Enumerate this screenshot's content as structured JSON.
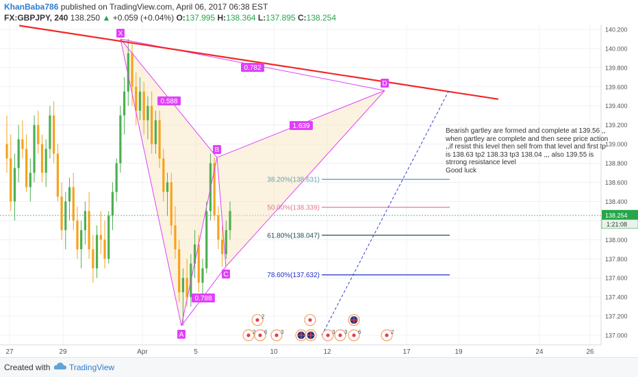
{
  "header": {
    "author": "KhanBaba786",
    "published_text": "published on TradingView.com, April 06, 2017 06:38 EST",
    "symbol": "FX:GBPJPY, 240",
    "last": "138.250",
    "change_arrow": "▲",
    "change": "+0.059 (+0.04%)",
    "open_label": "O:",
    "open": "137.995",
    "high_label": "H:",
    "high": "138.364",
    "low_label": "L:",
    "low": "137.895",
    "close_label": "C:",
    "close": "138.254"
  },
  "footer": {
    "created_with": "Created with",
    "brand": "TradingView",
    "icon": "tradingview-cloud-icon"
  },
  "note": "Bearish gartley are formed and complete at 139.56 ,, when gartley are complete and then seee price action ,,if resist this level then sell from that level and first tp is 138.63 tp2 138.33 tp3 138.04 ,,, also 139.55 is strrong resistance level\nGood luck",
  "colors": {
    "up": "#4caf50",
    "down": "#f7a21b",
    "pattern": "#e040fb",
    "trendline": "#f22626",
    "grid": "#eef0f4",
    "price_tag": "#26a64a"
  },
  "chart_data": {
    "type": "candlestick",
    "symbol": "GBPJPY",
    "interval": "240",
    "y_range": [
      136.9,
      140.25
    ],
    "y_ticks": [
      "140.200",
      "140.000",
      "139.800",
      "139.600",
      "139.400",
      "139.200",
      "139.000",
      "138.800",
      "138.600",
      "138.400",
      "138.200",
      "138.000",
      "137.800",
      "137.600",
      "137.400",
      "137.200",
      "137.000"
    ],
    "x_ticks": [
      "27",
      "29",
      "Apr",
      "5",
      "10",
      "12",
      "17",
      "19",
      "24",
      "26"
    ],
    "current_price_label": "138.254",
    "countdown_label": "1:21:08",
    "pattern_points": [
      {
        "label": "X",
        "price": 140.1
      },
      {
        "label": "A",
        "price": 137.1
      },
      {
        "label": "B",
        "price": 138.86
      },
      {
        "label": "C",
        "price": 137.72
      },
      {
        "label": "D",
        "price": 139.56
      }
    ],
    "ratios": [
      "0.782",
      "0.588",
      "1.639",
      "0.788"
    ],
    "fib_levels": [
      {
        "label": "38.20%(138.631)",
        "price": 138.631,
        "color": "#6aa0b0"
      },
      {
        "label": "50.00%(138.339)",
        "price": 138.339,
        "color": "#e07a8c"
      },
      {
        "label": "61.80%(138.047)",
        "price": 138.047,
        "color": "#1c4b5a"
      },
      {
        "label": "78.60%(137.632)",
        "price": 137.632,
        "color": "#1f2fc6"
      }
    ],
    "trendline": {
      "start_price": 140.24,
      "end_price": 139.47
    },
    "projection_line": {
      "start_price": 137.0,
      "end_price": 139.55
    },
    "candles": [
      [
        139.0,
        139.3,
        138.7,
        138.85
      ],
      [
        138.85,
        139.1,
        138.3,
        138.4
      ],
      [
        138.4,
        138.9,
        138.2,
        138.75
      ],
      [
        138.75,
        139.2,
        138.6,
        139.05
      ],
      [
        139.05,
        139.25,
        138.85,
        138.95
      ],
      [
        138.95,
        139.1,
        138.5,
        138.55
      ],
      [
        138.55,
        138.85,
        138.4,
        138.7
      ],
      [
        138.7,
        139.3,
        138.6,
        139.2
      ],
      [
        139.2,
        139.35,
        138.9,
        139.0
      ],
      [
        139.0,
        139.1,
        138.6,
        138.7
      ],
      [
        138.7,
        139.05,
        138.55,
        138.95
      ],
      [
        138.95,
        139.4,
        138.85,
        139.3
      ],
      [
        139.3,
        139.45,
        138.8,
        138.9
      ],
      [
        138.9,
        139.0,
        138.4,
        138.45
      ],
      [
        138.45,
        138.6,
        138.0,
        138.1
      ],
      [
        138.1,
        138.5,
        137.9,
        138.4
      ],
      [
        138.4,
        138.65,
        138.2,
        138.55
      ],
      [
        138.55,
        138.7,
        138.1,
        138.2
      ],
      [
        138.2,
        138.35,
        137.8,
        137.9
      ],
      [
        137.9,
        138.2,
        137.7,
        138.1
      ],
      [
        138.1,
        138.4,
        137.95,
        138.3
      ],
      [
        138.3,
        138.5,
        137.8,
        137.9
      ],
      [
        137.9,
        138.05,
        137.55,
        137.7
      ],
      [
        137.7,
        138.15,
        137.6,
        138.05
      ],
      [
        138.05,
        138.3,
        137.85,
        138.0
      ],
      [
        138.0,
        138.2,
        137.7,
        137.8
      ],
      [
        137.8,
        138.3,
        137.75,
        138.25
      ],
      [
        138.25,
        138.6,
        138.1,
        138.5
      ],
      [
        138.5,
        138.85,
        138.4,
        138.8
      ],
      [
        138.8,
        139.4,
        138.7,
        139.3
      ],
      [
        139.3,
        139.7,
        139.1,
        139.55
      ],
      [
        139.55,
        140.1,
        139.4,
        139.95
      ],
      [
        139.95,
        140.05,
        139.4,
        139.6
      ],
      [
        139.6,
        139.75,
        139.2,
        139.35
      ],
      [
        139.35,
        139.7,
        139.25,
        139.55
      ],
      [
        139.55,
        139.65,
        139.1,
        139.25
      ],
      [
        139.25,
        139.5,
        139.05,
        139.4
      ],
      [
        139.4,
        139.55,
        138.9,
        139.0
      ],
      [
        139.0,
        139.35,
        138.9,
        139.25
      ],
      [
        139.25,
        139.35,
        138.75,
        138.85
      ],
      [
        138.85,
        138.95,
        138.4,
        138.5
      ],
      [
        138.5,
        138.7,
        138.25,
        138.6
      ],
      [
        138.6,
        138.7,
        138.05,
        138.15
      ],
      [
        138.15,
        138.35,
        137.8,
        137.9
      ],
      [
        137.9,
        138.0,
        137.35,
        137.45
      ],
      [
        137.45,
        137.7,
        137.1,
        137.6
      ],
      [
        137.6,
        137.8,
        137.3,
        137.4
      ],
      [
        137.4,
        137.85,
        137.3,
        137.75
      ],
      [
        137.75,
        138.1,
        137.6,
        137.95
      ],
      [
        137.95,
        138.05,
        137.45,
        137.55
      ],
      [
        137.55,
        137.8,
        137.4,
        137.7
      ],
      [
        137.7,
        138.4,
        137.65,
        138.3
      ],
      [
        138.3,
        138.9,
        138.2,
        138.8
      ],
      [
        138.8,
        138.86,
        138.2,
        138.25
      ],
      [
        138.25,
        138.35,
        137.9,
        138.0
      ],
      [
        138.0,
        138.15,
        137.72,
        137.85
      ],
      [
        137.85,
        138.2,
        137.8,
        138.1
      ],
      [
        138.1,
        138.4,
        138.0,
        138.3
      ]
    ],
    "event_markers_row1": [
      "2",
      "",
      "",
      ""
    ],
    "event_markers_row2": [
      "2",
      "6",
      "3",
      "",
      "",
      "3",
      "3",
      "6",
      "2",
      ""
    ]
  }
}
